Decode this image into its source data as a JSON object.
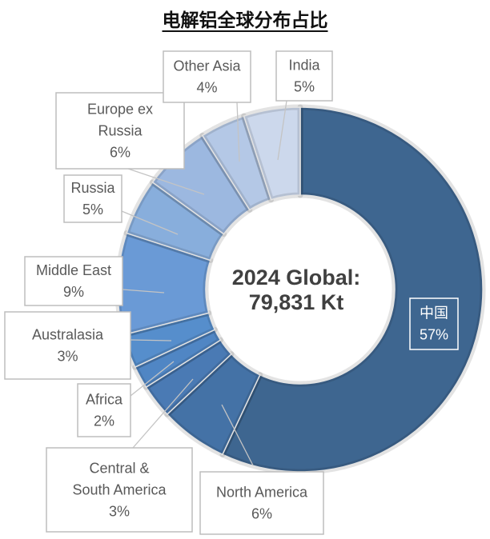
{
  "chart_data": {
    "type": "pie",
    "variant": "donut",
    "title": "电解铝全球分布占比",
    "center_label": [
      "2024 Global:",
      "79,831 Kt"
    ],
    "unit": "%",
    "slices": [
      {
        "name": "中国",
        "value": 57,
        "label": "57%",
        "color": "#3e6690"
      },
      {
        "name": "North America",
        "value": 6,
        "label": "6%",
        "color": "#4472a6"
      },
      {
        "name": "Central & South America",
        "value": 3,
        "label": "3%",
        "color": "#4a7ab4"
      },
      {
        "name": "Africa",
        "value": 2,
        "label": "2%",
        "color": "#5086c4"
      },
      {
        "name": "Australasia",
        "value": 3,
        "label": "3%",
        "color": "#568ecc"
      },
      {
        "name": "Middle East",
        "value": 9,
        "label": "9%",
        "color": "#6a9ad6"
      },
      {
        "name": "Russia",
        "value": 5,
        "label": "5%",
        "color": "#88aedc"
      },
      {
        "name": "Europe ex Russia",
        "value": 6,
        "label": "6%",
        "color": "#9cb8e0"
      },
      {
        "name": "Other Asia",
        "value": 4,
        "label": "4%",
        "color": "#b4c8e6"
      },
      {
        "name": "India",
        "value": 5,
        "label": "5%",
        "color": "#ccd8ec"
      }
    ]
  }
}
